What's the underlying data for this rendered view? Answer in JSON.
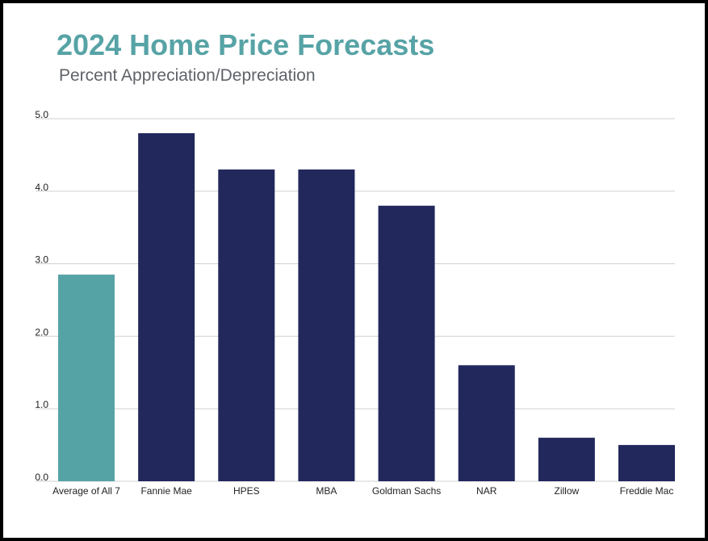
{
  "colors": {
    "title": "#57a3a6",
    "highlight": "#56a3a6",
    "bar": "#22285c",
    "grid": "#d0d0d0",
    "text": "#222222"
  },
  "chart_data": {
    "type": "bar",
    "title": "2024 Home Price Forecasts",
    "subtitle": "Percent Appreciation/Depreciation",
    "xlabel": "",
    "ylabel": "",
    "categories": [
      "Average of All 7",
      "Fannie Mae",
      "HPES",
      "MBA",
      "Goldman Sachs",
      "NAR",
      "Zillow",
      "Freddie Mac"
    ],
    "values": [
      2.85,
      4.8,
      4.3,
      4.3,
      3.8,
      1.6,
      0.6,
      0.5
    ],
    "highlight_index": 0,
    "ylim": [
      0,
      5
    ],
    "yticks": [
      "0.0",
      "1.0",
      "2.0",
      "3.0",
      "4.0",
      "5.0"
    ],
    "grid": true,
    "legend": "none"
  }
}
